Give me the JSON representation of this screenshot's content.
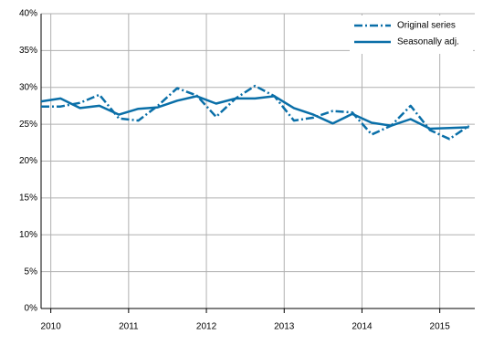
{
  "chart_data": {
    "type": "line",
    "x": [
      2009.875,
      2010.125,
      2010.375,
      2010.625,
      2010.875,
      2011.125,
      2011.375,
      2011.625,
      2011.875,
      2012.125,
      2012.375,
      2012.625,
      2012.875,
      2013.125,
      2013.375,
      2013.625,
      2013.875,
      2014.125,
      2014.375,
      2014.625,
      2014.875,
      2015.125,
      2015.375
    ],
    "series": [
      {
        "name": "Original series",
        "color": "#0a6fa8",
        "style": "dash-dot",
        "values": [
          27.4,
          27.4,
          27.9,
          29.0,
          25.8,
          25.5,
          27.5,
          29.9,
          28.9,
          26.0,
          28.5,
          30.2,
          28.8,
          25.5,
          25.9,
          26.8,
          26.6,
          23.6,
          24.8,
          27.5,
          24.2,
          23.0,
          24.8
        ]
      },
      {
        "name": "Seasonally adj.",
        "color": "#0a6fa8",
        "style": "solid",
        "values": [
          28.1,
          28.5,
          27.2,
          27.5,
          26.3,
          27.1,
          27.3,
          28.2,
          28.8,
          27.8,
          28.5,
          28.5,
          28.8,
          27.2,
          26.3,
          25.1,
          26.4,
          25.2,
          24.8,
          25.7,
          24.4,
          24.5,
          24.6
        ]
      }
    ],
    "xlim": [
      2009.875,
      2015.45
    ],
    "xticks": [
      2010,
      2011,
      2012,
      2013,
      2014,
      2015
    ],
    "ylim": [
      0,
      40
    ],
    "yticks": [
      {
        "value": 0,
        "label": "0%"
      },
      {
        "value": 5,
        "label": "5%"
      },
      {
        "value": 10,
        "label": "10%"
      },
      {
        "value": 15,
        "label": "15%"
      },
      {
        "value": 20,
        "label": "20%"
      },
      {
        "value": 25,
        "label": "25%"
      },
      {
        "value": 30,
        "label": "30%"
      },
      {
        "value": 35,
        "label": "35%"
      },
      {
        "value": 40,
        "label": "40%"
      }
    ],
    "grid": true,
    "legend": "top-right"
  }
}
